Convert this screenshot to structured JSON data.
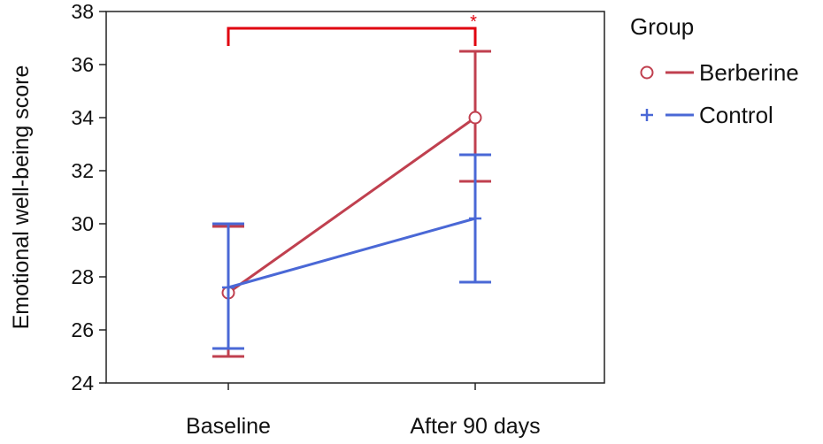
{
  "chart_data": {
    "type": "line",
    "ylabel": "Emotional well-being score",
    "xlabel": "",
    "categories": [
      "Baseline",
      "After 90 days"
    ],
    "ylim": [
      24,
      38
    ],
    "yticks": [
      24,
      26,
      28,
      30,
      32,
      34,
      36,
      38
    ],
    "grid": false,
    "legend": {
      "title": "Group",
      "placement": "right"
    },
    "series": [
      {
        "name": "Berberine",
        "marker": "circle",
        "color": "#c0404f",
        "values": [
          27.4,
          34.0
        ],
        "ci_low": [
          25.0,
          31.6
        ],
        "ci_high": [
          29.9,
          36.5
        ]
      },
      {
        "name": "Control",
        "marker": "plus",
        "color": "#4a68d6",
        "values": [
          27.6,
          30.2
        ],
        "ci_low": [
          25.3,
          27.8
        ],
        "ci_high": [
          30.0,
          32.6
        ]
      }
    ],
    "significance": {
      "label": "*",
      "color": "#e0000f",
      "from": "Baseline",
      "to": "After 90 days"
    }
  }
}
